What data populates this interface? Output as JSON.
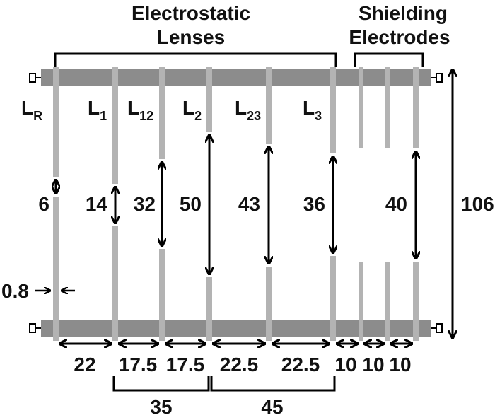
{
  "header": {
    "lenses_title": [
      "Electrostatic",
      "Lenses"
    ],
    "shield_title": [
      "Shielding",
      "Electrodes"
    ]
  },
  "electrodes": [
    {
      "label": "L",
      "sub": "R"
    },
    {
      "label": "L",
      "sub": "1"
    },
    {
      "label": "L",
      "sub": "12"
    },
    {
      "label": "L",
      "sub": "2"
    },
    {
      "label": "L",
      "sub": "23"
    },
    {
      "label": "L",
      "sub": "3"
    }
  ],
  "gaps": [
    6,
    14,
    32,
    50,
    43,
    36,
    40
  ],
  "height": 106,
  "thickness": 0.8,
  "spacings": [
    22,
    17.5,
    17.5,
    22.5,
    22.5,
    10,
    10,
    10
  ],
  "groups": [
    35,
    45
  ]
}
